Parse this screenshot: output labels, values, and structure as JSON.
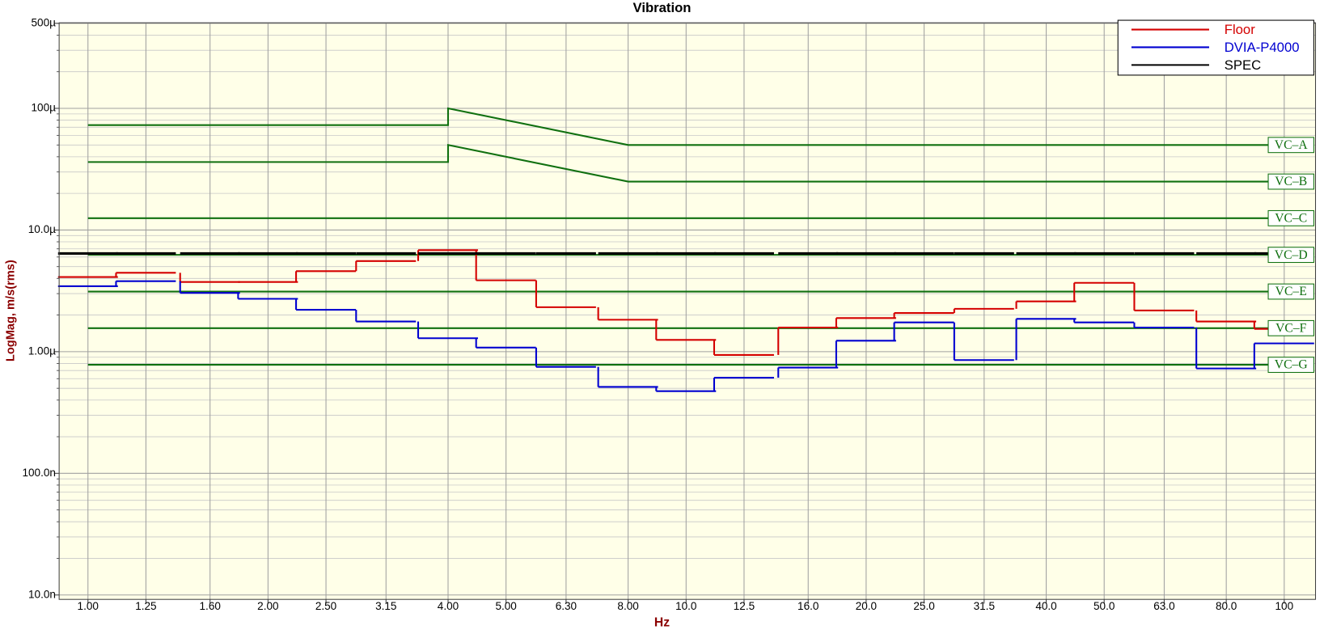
{
  "chart_data": {
    "type": "step",
    "title": "Vibration",
    "xlabel": "Hz",
    "ylabel": "LogMag, m/s(rms)",
    "xscale": "log",
    "yscale": "log",
    "grid": true,
    "yminor": true,
    "legend": "upper right",
    "xlim": [
      0.895,
      112.8
    ],
    "ylim": [
      9.2e-09,
      0.000505
    ],
    "xticks": [
      {
        "value": 1,
        "label": "1.00"
      },
      1.25,
      {
        "value": 1.6,
        "label": "1.60"
      },
      {
        "value": 2,
        "label": "2.00"
      },
      {
        "value": 2.5,
        "label": "2.50"
      },
      3.15,
      {
        "value": 4,
        "label": "4.00"
      },
      {
        "value": 5,
        "label": "5.00"
      },
      {
        "value": 6.3,
        "label": "6.30"
      },
      {
        "value": 8,
        "label": "8.00"
      },
      {
        "value": 10,
        "label": "10.0"
      },
      12.5,
      {
        "value": 16,
        "label": "16.0"
      },
      {
        "value": 20,
        "label": "20.0"
      },
      {
        "value": 25,
        "label": "25.0"
      },
      31.5,
      {
        "value": 40,
        "label": "40.0"
      },
      {
        "value": 50,
        "label": "50.0"
      },
      {
        "value": 63,
        "label": "63.0"
      },
      {
        "value": 80,
        "label": "80.0"
      },
      100
    ],
    "yticks": [
      {
        "value": 0.0005,
        "label": "500µ"
      },
      {
        "value": 0.0001,
        "label": "100µ"
      },
      {
        "value": 1e-05,
        "label": "10.0µ"
      },
      {
        "value": 1e-06,
        "label": "1.00µ"
      },
      {
        "value": 1e-07,
        "label": "100.0n"
      },
      {
        "value": 1e-08,
        "label": "10.0n"
      }
    ],
    "x": [
      1,
      1.25,
      1.6,
      2,
      2.5,
      3.15,
      4,
      5,
      6.3,
      8,
      10,
      12.5,
      16,
      20,
      25,
      31.5,
      40,
      50,
      63,
      80,
      100
    ],
    "series": [
      {
        "name": "Floor",
        "color": "#d40000",
        "values": [
          4.11e-06,
          4.45e-06,
          3.74e-06,
          3.74e-06,
          4.59e-06,
          5.56e-06,
          6.83e-06,
          3.86e-06,
          2.32e-06,
          1.83e-06,
          1.25e-06,
          9.4e-07,
          1.58e-06,
          1.89e-06,
          2.08e-06,
          2.25e-06,
          2.59e-06,
          3.68e-06,
          2.18e-06,
          1.77e-06,
          1.54e-06
        ]
      },
      {
        "name": "DVIA-P4000",
        "color": "#0000d0",
        "values": [
          3.45e-06,
          3.8e-06,
          3.04e-06,
          2.72e-06,
          2.21e-06,
          1.77e-06,
          1.29e-06,
          1.08e-06,
          7.5e-07,
          5.13e-07,
          4.74e-07,
          6.11e-07,
          7.4e-07,
          1.23e-06,
          1.74e-06,
          8.53e-07,
          1.86e-06,
          1.74e-06,
          1.58e-06,
          7.28e-07,
          1.17e-06
        ]
      },
      {
        "name": "SPEC",
        "color": "#000000",
        "values": [
          6.41e-06,
          6.41e-06,
          6.41e-06,
          6.41e-06,
          6.41e-06,
          6.41e-06,
          6.41e-06,
          6.41e-06,
          6.41e-06,
          6.41e-06,
          6.41e-06,
          6.41e-06,
          6.41e-06,
          6.41e-06,
          6.41e-06,
          6.41e-06,
          6.41e-06,
          6.41e-06,
          6.41e-06,
          6.41e-06,
          6.41e-06
        ]
      }
    ],
    "criteria_color": "#107010",
    "criteria": [
      {
        "name": "VC–A",
        "x": [
          1,
          4,
          4,
          8,
          100
        ],
        "values": [
          7.28e-05,
          7.28e-05,
          0.0001,
          5e-05,
          5e-05
        ]
      },
      {
        "name": "VC–B",
        "x": [
          1,
          4,
          4,
          8,
          100
        ],
        "values": [
          3.62e-05,
          3.62e-05,
          5e-05,
          2.5e-05,
          2.5e-05
        ]
      },
      {
        "name": "VC–C",
        "x": [
          1,
          100
        ],
        "values": [
          1.25e-05,
          1.25e-05
        ]
      },
      {
        "name": "VC–D",
        "x": [
          1,
          100
        ],
        "values": [
          6.25e-06,
          6.25e-06
        ]
      },
      {
        "name": "VC–E",
        "x": [
          1,
          100
        ],
        "values": [
          3.12e-06,
          3.12e-06
        ]
      },
      {
        "name": "VC–F",
        "x": [
          1,
          100
        ],
        "values": [
          1.56e-06,
          1.56e-06
        ]
      },
      {
        "name": "VC–G",
        "x": [
          1,
          100
        ],
        "values": [
          7.8e-07,
          7.8e-07
        ]
      }
    ]
  }
}
